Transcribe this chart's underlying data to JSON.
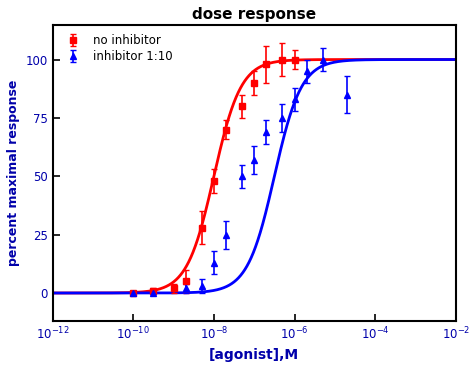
{
  "title": "dose response",
  "xlabel": "[agonist],M",
  "ylabel": "percent maximal response",
  "xlim_log": [
    -12,
    -2
  ],
  "ylim": [
    -12,
    115
  ],
  "yticks": [
    0,
    25,
    50,
    75,
    100
  ],
  "xticks_log": [
    -12,
    -10,
    -8,
    -6,
    -4,
    -2
  ],
  "red_color": "#FF0000",
  "blue_color": "#0000FF",
  "background_color": "#FFFFFF",
  "legend_labels": [
    "no inhibitor",
    "inhibitor 1:10"
  ],
  "red_ec50_log": -8.0,
  "blue_ec50_log": -6.5,
  "hill_slope": 1.3,
  "red_data_x_log": [
    -10.0,
    -9.5,
    -9.0,
    -8.7,
    -8.3,
    -8.0,
    -7.7,
    -7.3,
    -7.0,
    -6.7,
    -6.3,
    -6.0
  ],
  "red_data_y": [
    0,
    1,
    2,
    5,
    28,
    48,
    70,
    80,
    90,
    98,
    100,
    100
  ],
  "red_data_yerr": [
    0.5,
    1,
    2,
    5,
    7,
    5,
    4,
    5,
    5,
    8,
    7,
    4
  ],
  "blue_data_x_log": [
    -10.0,
    -9.5,
    -8.7,
    -8.3,
    -8.0,
    -7.7,
    -7.3,
    -7.0,
    -6.7,
    -6.3,
    -6.0,
    -5.7,
    -5.3,
    -4.7
  ],
  "blue_data_y": [
    0,
    0,
    2,
    3,
    13,
    25,
    50,
    57,
    69,
    75,
    83,
    95,
    100,
    85
  ],
  "blue_data_yerr": [
    0.5,
    0.5,
    2,
    3,
    5,
    6,
    5,
    6,
    5,
    6,
    5,
    5,
    5,
    8
  ]
}
